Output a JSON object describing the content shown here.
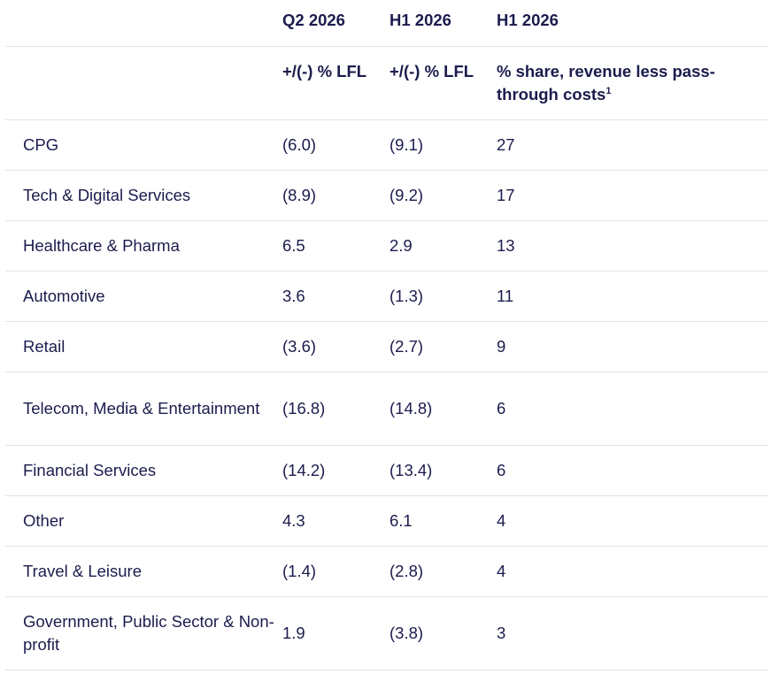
{
  "header": {
    "row1": [
      "",
      "Q2 2026",
      "H1 2026",
      "H1 2026"
    ],
    "row2": [
      "",
      "+/(-) % LFL",
      "+/(-) % LFL",
      "% share, revenue less pass-through costs"
    ],
    "footnote_marker": "1"
  },
  "rows": [
    {
      "sector": "CPG",
      "q2_lfl": "(6.0)",
      "h1_lfl": "(9.1)",
      "share": "27"
    },
    {
      "sector": "Tech & Digital Services",
      "q2_lfl": "(8.9)",
      "h1_lfl": "(9.2)",
      "share": "17"
    },
    {
      "sector": "Healthcare & Pharma",
      "q2_lfl": "6.5",
      "h1_lfl": "2.9",
      "share": "13"
    },
    {
      "sector": "Automotive",
      "q2_lfl": "3.6",
      "h1_lfl": "(1.3)",
      "share": "11"
    },
    {
      "sector": "Retail",
      "q2_lfl": "(3.6)",
      "h1_lfl": "(2.7)",
      "share": "9"
    },
    {
      "sector": "Telecom, Media & Entertainment",
      "q2_lfl": "(16.8)",
      "h1_lfl": "(14.8)",
      "share": "6"
    },
    {
      "sector": "Financial Services",
      "q2_lfl": "(14.2)",
      "h1_lfl": "(13.4)",
      "share": "6"
    },
    {
      "sector": "Other",
      "q2_lfl": "4.3",
      "h1_lfl": "6.1",
      "share": "4"
    },
    {
      "sector": "Travel & Leisure",
      "q2_lfl": "(1.4)",
      "h1_lfl": "(2.8)",
      "share": "4"
    },
    {
      "sector": "Government, Public Sector & Non-profit",
      "q2_lfl": "1.9",
      "h1_lfl": "(3.8)",
      "share": "3"
    }
  ],
  "colors": {
    "text": "#1b1c4d",
    "divider": "#e3e4ea",
    "background": "#ffffff"
  }
}
